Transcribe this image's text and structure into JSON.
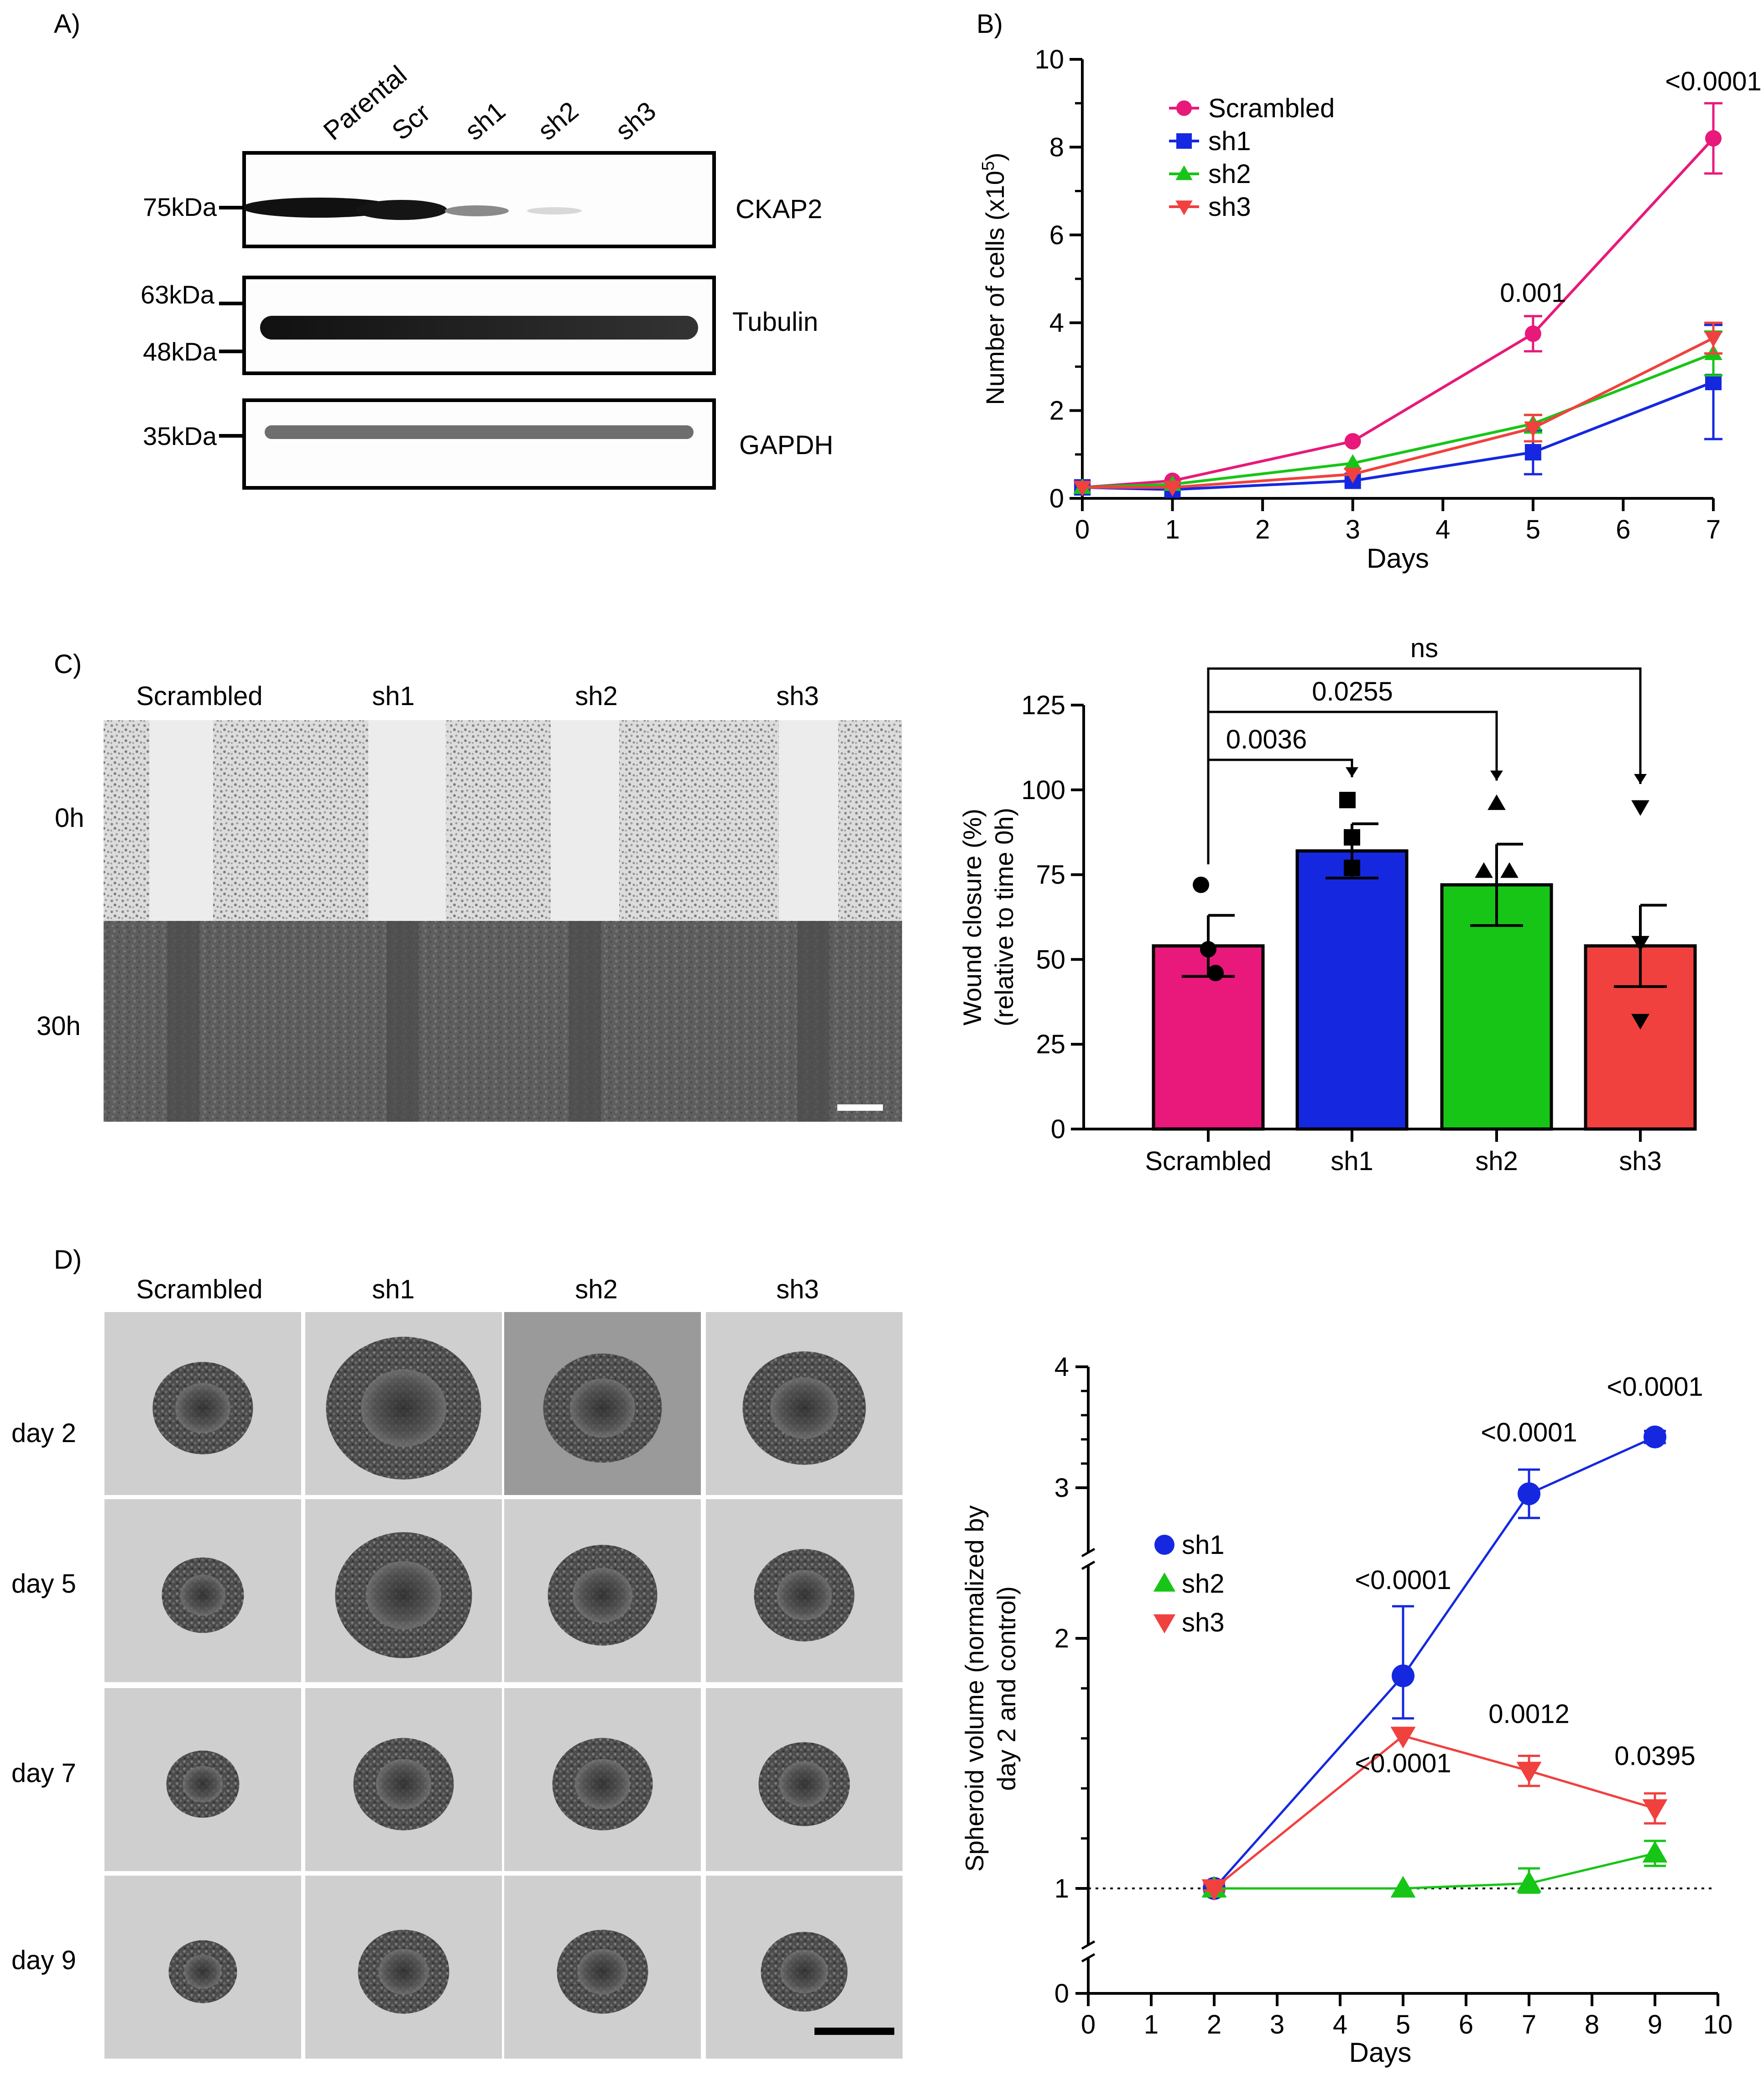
{
  "colors": {
    "scrambled": "#e8197a",
    "sh1": "#1528e0",
    "sh2": "#17c517",
    "sh3": "#f0413f",
    "axis": "#000000"
  },
  "panels": {
    "a": "A)",
    "b": "B)",
    "c": "C)",
    "d": "D)"
  },
  "western_blot": {
    "lanes": [
      "Parental",
      "Scr",
      "sh1",
      "sh2",
      "sh3"
    ],
    "markers": [
      "75kDa",
      "63kDa",
      "48kDa",
      "35kDa"
    ],
    "proteins": [
      "CKAP2",
      "Tubulin",
      "GAPDH"
    ]
  },
  "wound_images": {
    "columns": [
      "Scrambled",
      "sh1",
      "sh2",
      "sh3"
    ],
    "rows": [
      "0h",
      "30h"
    ]
  },
  "spheroid_images": {
    "columns": [
      "Scrambled",
      "sh1",
      "sh2",
      "sh3"
    ],
    "rows": [
      "day 2",
      "day 5",
      "day 7",
      "day 9"
    ]
  },
  "chart_data": [
    {
      "id": "growth",
      "type": "line",
      "title": "",
      "xlabel": "Days",
      "ylabel": "Number of cells (x10^5)",
      "ylabel_main": "Number of cells (x10",
      "ylabel_exp": "5",
      "ylabel_close": ")",
      "xlim": [
        0,
        7
      ],
      "ylim": [
        0,
        10
      ],
      "xticks": [
        "0",
        "1",
        "2",
        "3",
        "4",
        "5",
        "6",
        "7"
      ],
      "yticks": [
        "0",
        "2",
        "4",
        "6",
        "8",
        "10"
      ],
      "x": [
        0,
        1,
        3,
        5,
        7
      ],
      "legend_position": "top-left",
      "series": [
        {
          "name": "Scrambled",
          "values": [
            0.25,
            0.4,
            1.3,
            3.75,
            8.2
          ],
          "err": [
            0.05,
            0.05,
            0.08,
            0.4,
            0.8
          ]
        },
        {
          "name": "sh1",
          "values": [
            0.25,
            0.2,
            0.4,
            1.05,
            2.65
          ],
          "err": [
            0.05,
            0.05,
            0.08,
            0.5,
            1.3
          ]
        },
        {
          "name": "sh2",
          "values": [
            0.25,
            0.32,
            0.8,
            1.7,
            3.3
          ],
          "err": [
            0.05,
            0.05,
            0.08,
            0.2,
            0.5
          ]
        },
        {
          "name": "sh3",
          "values": [
            0.25,
            0.25,
            0.55,
            1.6,
            3.65
          ],
          "err": [
            0.05,
            0.05,
            0.08,
            0.3,
            0.35
          ]
        }
      ],
      "annotations": [
        {
          "x": 5,
          "y": 3.75,
          "text": "0.001"
        },
        {
          "x": 7,
          "y": 8.2,
          "text": "<0.0001"
        }
      ]
    },
    {
      "id": "wound",
      "type": "bar",
      "title": "",
      "xlabel": "",
      "ylabel": "Wound closure (%)",
      "ylabel2": "(relative to time 0h)",
      "ylim": [
        0,
        125
      ],
      "yticks": [
        "0",
        "25",
        "50",
        "75",
        "100",
        "125"
      ],
      "categories": [
        "Scrambled",
        "sh1",
        "sh2",
        "sh3"
      ],
      "values": [
        54,
        82,
        72,
        54
      ],
      "err": [
        9,
        8,
        12,
        12
      ],
      "points": [
        [
          72,
          53,
          46
        ],
        [
          97,
          86,
          77
        ],
        [
          96,
          76,
          76
        ],
        [
          95,
          55,
          32
        ]
      ],
      "comparisons": [
        {
          "from": "Scrambled",
          "to": "sh1",
          "text": "0.0036"
        },
        {
          "from": "Scrambled",
          "to": "sh2",
          "text": "0.0255"
        },
        {
          "from": "Scrambled",
          "to": "sh3",
          "text": "ns"
        }
      ]
    },
    {
      "id": "spheroid",
      "type": "line",
      "title": "",
      "xlabel": "Days",
      "ylabel": "Spheroid volume (normalized by day 2 and control)",
      "ylabel_line1": "Spheroid volume (normalized by",
      "ylabel_line2": "day 2 and control)",
      "xlim": [
        0,
        10
      ],
      "ylim": [
        0,
        4
      ],
      "axis_break": "between 0 and 1, and between 2 and 3",
      "xticks": [
        "0",
        "1",
        "2",
        "3",
        "4",
        "5",
        "6",
        "7",
        "8",
        "9",
        "10"
      ],
      "yticks": [
        "0",
        "1",
        "2",
        "3",
        "4"
      ],
      "x": [
        2,
        5,
        7,
        9
      ],
      "reference_line": 1,
      "legend_position": "left",
      "series": [
        {
          "name": "sh1",
          "values": [
            1.0,
            1.85,
            2.95,
            3.42
          ],
          "err": [
            0.02,
            0.17,
            0.2,
            0.05
          ]
        },
        {
          "name": "sh2",
          "values": [
            1.0,
            1.0,
            1.02,
            1.14
          ],
          "err": [
            0.02,
            0.01,
            0.06,
            0.05
          ]
        },
        {
          "name": "sh3",
          "values": [
            1.0,
            1.61,
            1.47,
            1.32
          ],
          "err": [
            0.02,
            0.01,
            0.06,
            0.06
          ]
        }
      ],
      "annotations": [
        {
          "series": "sh1",
          "x": 5,
          "text": "<0.0001"
        },
        {
          "series": "sh1",
          "x": 7,
          "text": "<0.0001"
        },
        {
          "series": "sh1",
          "x": 9,
          "text": "<0.0001"
        },
        {
          "series": "sh3",
          "x": 5,
          "text": "<0.0001"
        },
        {
          "series": "sh3",
          "x": 7,
          "text": "0.0012"
        },
        {
          "series": "sh3",
          "x": 9,
          "text": "0.0395"
        }
      ]
    }
  ]
}
